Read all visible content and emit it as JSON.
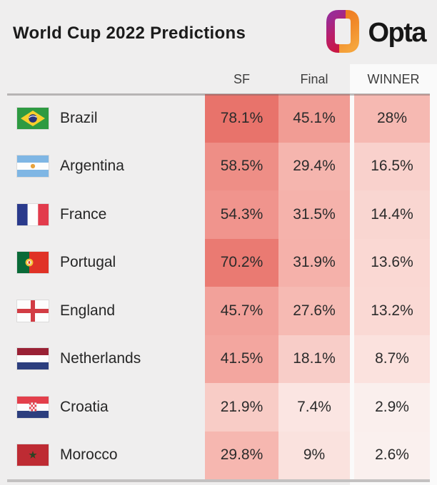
{
  "header": {
    "title": "World Cup 2022 Predictions",
    "brand": "Opta"
  },
  "brand_colors": {
    "logo_purple_top": "#A22893",
    "logo_crimson_bottom": "#C81744",
    "logo_orange_top": "#EF7E22",
    "logo_orange_bottom": "#F5A43C",
    "text": "#161616"
  },
  "heatmap_colors": {
    "strongest": "#E8736B",
    "lightest": "#FAF0EE"
  },
  "chart_data": {
    "type": "heatmap",
    "title": "World Cup 2022 Predictions",
    "columns": [
      "SF",
      "Final",
      "WINNER"
    ],
    "unit": "%",
    "rows": [
      {
        "team": "Brazil",
        "flag": "brazil",
        "sf": "78.1%",
        "final": "45.1%",
        "winner": "28%",
        "sf_num": 78.1,
        "final_num": 45.1,
        "winner_num": 28,
        "sf_color": "#E8736B",
        "final_color": "#F19C94",
        "winner_color": "#F6B9B2"
      },
      {
        "team": "Argentina",
        "flag": "argentina",
        "sf": "58.5%",
        "final": "29.4%",
        "winner": "16.5%",
        "sf_num": 58.5,
        "final_num": 29.4,
        "winner_num": 16.5,
        "sf_color": "#EE8E86",
        "final_color": "#F5B5AE",
        "winner_color": "#F9D1CC"
      },
      {
        "team": "France",
        "flag": "france",
        "sf": "54.3%",
        "final": "31.5%",
        "winner": "14.4%",
        "sf_num": 54.3,
        "final_num": 31.5,
        "winner_num": 14.4,
        "sf_color": "#F0948D",
        "final_color": "#F5B2AB",
        "winner_color": "#F9D6D1"
      },
      {
        "team": "Portugal",
        "flag": "portugal",
        "sf": "70.2%",
        "final": "31.9%",
        "winner": "13.6%",
        "sf_num": 70.2,
        "final_num": 31.9,
        "winner_num": 13.6,
        "sf_color": "#EA7A72",
        "final_color": "#F5B1AA",
        "winner_color": "#FAD8D3"
      },
      {
        "team": "England",
        "flag": "england",
        "sf": "45.7%",
        "final": "27.6%",
        "winner": "13.2%",
        "sf_num": 45.7,
        "final_num": 27.6,
        "winner_num": 13.2,
        "sf_color": "#F2A19A",
        "final_color": "#F6BAB3",
        "winner_color": "#FAD9D4"
      },
      {
        "team": "Netherlands",
        "flag": "netherlands",
        "sf": "41.5%",
        "final": "18.1%",
        "winner": "8.7%",
        "sf_num": 41.5,
        "final_num": 18.1,
        "winner_num": 8.7,
        "sf_color": "#F3A69F",
        "final_color": "#F8CDC8",
        "winner_color": "#FBE2DE"
      },
      {
        "team": "Croatia",
        "flag": "croatia",
        "sf": "21.9%",
        "final": "7.4%",
        "winner": "2.9%",
        "sf_num": 21.9,
        "final_num": 7.4,
        "winner_num": 2.9,
        "sf_color": "#F8CCC6",
        "final_color": "#FBE5E2",
        "winner_color": "#FAEFED"
      },
      {
        "team": "Morocco",
        "flag": "morocco",
        "sf": "29.8%",
        "final": "9%",
        "winner": "2.6%",
        "sf_num": 29.8,
        "final_num": 9,
        "winner_num": 2.6,
        "sf_color": "#F6B7B0",
        "final_color": "#FAE2DE",
        "winner_color": "#FAF0EE"
      }
    ]
  }
}
